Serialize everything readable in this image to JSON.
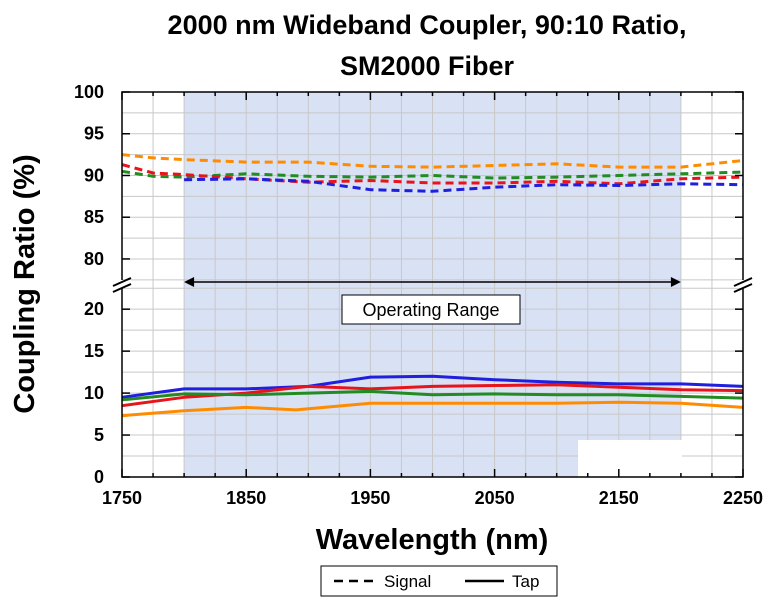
{
  "chart_data": {
    "type": "line",
    "title_lines": [
      "2000 nm Wideband Coupler, 90:10 Ratio,",
      "SM2000 Fiber"
    ],
    "xlabel": "Wavelength (nm)",
    "ylabel": "Coupling Ratio (%)",
    "xlim": [
      1750,
      2250
    ],
    "x_ticks": [
      "1750",
      "1850",
      "1950",
      "2050",
      "2150",
      "2250"
    ],
    "y_lower": {
      "range": [
        0,
        23
      ],
      "ticks": [
        "0",
        "5",
        "10",
        "15",
        "20"
      ]
    },
    "y_upper": {
      "range": [
        77,
        100
      ],
      "ticks": [
        "80",
        "85",
        "90",
        "95",
        "100"
      ]
    },
    "axis_break": "between 23 and 77",
    "grid": true,
    "operating_range": {
      "label": "Operating Range",
      "x": [
        1800,
        2200
      ],
      "shade_color": "#d9e1f4"
    },
    "legend": {
      "position": "bottom",
      "entries": [
        {
          "label": "Signal",
          "style": "dashed"
        },
        {
          "label": "Tap",
          "style": "solid"
        }
      ]
    },
    "series": [
      {
        "color": "#ff8c00",
        "style": "dashed",
        "group": "Signal",
        "x": [
          1750,
          1775,
          1800,
          1850,
          1900,
          1950,
          2000,
          2050,
          2100,
          2150,
          2200,
          2250
        ],
        "y": [
          92.5,
          92.1,
          91.9,
          91.6,
          91.6,
          91.1,
          91.0,
          91.2,
          91.4,
          91.0,
          91.0,
          91.8
        ]
      },
      {
        "color": "#228b22",
        "style": "dashed",
        "group": "Signal",
        "x": [
          1750,
          1775,
          1800,
          1850,
          1900,
          1950,
          2000,
          2050,
          2100,
          2150,
          2200,
          2250
        ],
        "y": [
          90.5,
          89.9,
          89.8,
          90.2,
          89.9,
          89.8,
          90.0,
          89.7,
          89.8,
          90.0,
          90.2,
          90.4
        ]
      },
      {
        "color": "#e8141c",
        "style": "dashed",
        "group": "Signal",
        "x": [
          1750,
          1775,
          1800,
          1850,
          1900,
          1950,
          2000,
          2050,
          2100,
          2150,
          2200,
          2250
        ],
        "y": [
          91.3,
          90.3,
          90.1,
          89.6,
          89.2,
          89.4,
          89.1,
          89.1,
          89.3,
          89.0,
          89.6,
          89.8
        ]
      },
      {
        "color": "#1f1fdd",
        "style": "dashed",
        "group": "Signal",
        "x": [
          1800,
          1850,
          1900,
          1950,
          2000,
          2050,
          2100,
          2150,
          2200,
          2250
        ],
        "y": [
          89.5,
          89.6,
          89.3,
          88.3,
          88.1,
          88.6,
          88.9,
          88.8,
          89.0,
          88.9
        ]
      },
      {
        "color": "#1f1fdd",
        "style": "solid",
        "group": "Tap",
        "x": [
          1750,
          1800,
          1850,
          1900,
          1950,
          2000,
          2050,
          2100,
          2150,
          2200,
          2250
        ],
        "y": [
          9.5,
          10.5,
          10.5,
          10.8,
          11.9,
          12.0,
          11.6,
          11.3,
          11.1,
          11.1,
          10.8
        ]
      },
      {
        "color": "#e8141c",
        "style": "solid",
        "group": "Tap",
        "x": [
          1750,
          1800,
          1850,
          1900,
          1950,
          2000,
          2050,
          2100,
          2150,
          2200,
          2250
        ],
        "y": [
          8.5,
          9.5,
          10.0,
          10.8,
          10.5,
          10.8,
          10.9,
          11.0,
          10.7,
          10.4,
          10.3
        ]
      },
      {
        "color": "#228b22",
        "style": "solid",
        "group": "Tap",
        "x": [
          1750,
          1800,
          1850,
          1900,
          1950,
          2000,
          2050,
          2100,
          2150,
          2200,
          2250
        ],
        "y": [
          9.2,
          9.9,
          9.8,
          10.0,
          10.2,
          9.8,
          9.9,
          9.8,
          9.8,
          9.6,
          9.4
        ]
      },
      {
        "color": "#ff8c00",
        "style": "solid",
        "group": "Tap",
        "x": [
          1750,
          1800,
          1850,
          1890,
          1950,
          2000,
          2050,
          2100,
          2150,
          2200,
          2250
        ],
        "y": [
          7.3,
          7.9,
          8.3,
          8.0,
          8.8,
          8.8,
          8.8,
          8.8,
          8.9,
          8.8,
          8.3
        ]
      }
    ]
  }
}
